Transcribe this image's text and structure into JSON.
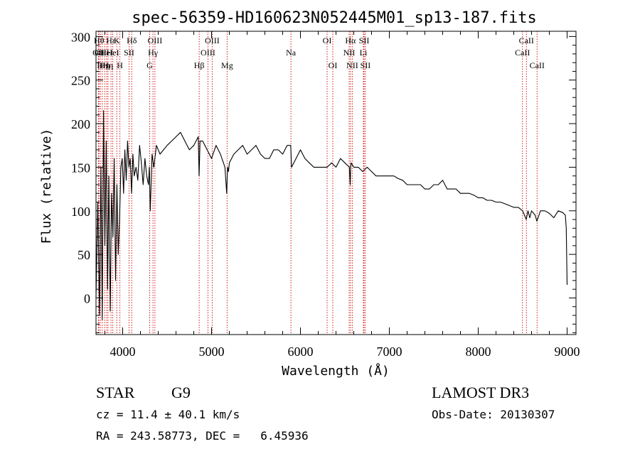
{
  "chart_data": {
    "type": "line",
    "title": "spec-56359-HD160623N052445M01_sp13-187.fits",
    "xlabel": "Wavelength (Å)",
    "ylabel": "Flux (relative)",
    "xlim": [
      3700,
      9100
    ],
    "ylim": [
      -42,
      306
    ],
    "x_ticks": [
      4000,
      5000,
      6000,
      7000,
      8000,
      9000
    ],
    "x_tick_labels": [
      "4000",
      "5000",
      "6000",
      "7000",
      "8000",
      "9000"
    ],
    "y_ticks": [
      0,
      50,
      100,
      150,
      200,
      250,
      300
    ],
    "y_tick_labels": [
      "0",
      "50",
      "100",
      "150",
      "200",
      "250",
      "300"
    ],
    "series": [
      {
        "name": "spectrum",
        "x": [
          3700,
          3720,
          3740,
          3755,
          3770,
          3785,
          3800,
          3815,
          3830,
          3845,
          3860,
          3875,
          3890,
          3905,
          3920,
          3935,
          3950,
          3965,
          3980,
          3995,
          4010,
          4025,
          4040,
          4055,
          4070,
          4085,
          4100,
          4115,
          4130,
          4150,
          4170,
          4190,
          4210,
          4230,
          4250,
          4270,
          4290,
          4300,
          4310,
          4330,
          4350,
          4380,
          4420,
          4460,
          4500,
          4550,
          4600,
          4650,
          4700,
          4750,
          4800,
          4850,
          4860,
          4870,
          4900,
          4950,
          5000,
          5050,
          5100,
          5150,
          5170,
          5180,
          5190,
          5200,
          5250,
          5300,
          5350,
          5400,
          5450,
          5500,
          5550,
          5600,
          5650,
          5700,
          5750,
          5800,
          5850,
          5890,
          5900,
          5950,
          6000,
          6050,
          6100,
          6150,
          6200,
          6250,
          6300,
          6350,
          6400,
          6450,
          6500,
          6550,
          6560,
          6565,
          6570,
          6600,
          6650,
          6700,
          6750,
          6800,
          6850,
          6900,
          6950,
          7000,
          7050,
          7100,
          7150,
          7200,
          7250,
          7300,
          7350,
          7400,
          7450,
          7500,
          7550,
          7600,
          7650,
          7700,
          7750,
          7800,
          7850,
          7900,
          7950,
          8000,
          8050,
          8100,
          8150,
          8200,
          8250,
          8300,
          8350,
          8400,
          8450,
          8500,
          8540,
          8560,
          8580,
          8600,
          8640,
          8660,
          8700,
          8750,
          8800,
          8850,
          8900,
          8950,
          8980,
          8990,
          9000
        ],
        "y": [
          0,
          110,
          -20,
          150,
          -25,
          215,
          60,
          180,
          10,
          140,
          -15,
          120,
          70,
          160,
          20,
          130,
          50,
          90,
          150,
          160,
          120,
          170,
          135,
          180,
          150,
          160,
          120,
          165,
          140,
          150,
          135,
          175,
          155,
          130,
          160,
          140,
          130,
          150,
          100,
          165,
          150,
          175,
          165,
          170,
          175,
          180,
          185,
          190,
          180,
          170,
          175,
          185,
          140,
          180,
          180,
          170,
          160,
          175,
          165,
          150,
          120,
          150,
          145,
          155,
          165,
          170,
          175,
          165,
          170,
          175,
          165,
          160,
          160,
          170,
          170,
          165,
          175,
          175,
          150,
          160,
          170,
          160,
          155,
          150,
          150,
          150,
          150,
          155,
          150,
          160,
          155,
          150,
          130,
          150,
          155,
          150,
          150,
          145,
          150,
          145,
          140,
          140,
          140,
          140,
          140,
          137,
          135,
          130,
          130,
          130,
          130,
          125,
          125,
          130,
          130,
          135,
          125,
          125,
          125,
          120,
          120,
          120,
          118,
          115,
          115,
          112,
          112,
          110,
          110,
          108,
          106,
          104,
          104,
          100,
          90,
          100,
          92,
          100,
          95,
          88,
          100,
          100,
          97,
          92,
          100,
          98,
          95,
          80,
          15
        ]
      }
    ],
    "line_markers": [
      {
        "x": 3728,
        "label": "OII",
        "row": 2
      },
      {
        "x": 3734,
        "label": "Hθ",
        "row": 1
      },
      {
        "x": 3750,
        "label": "OII",
        "row": 2
      },
      {
        "x": 3771,
        "label": "Hη",
        "row": 3
      },
      {
        "x": 3798,
        "label": "Hη",
        "row": 3
      },
      {
        "x": 3820,
        "label": "HeI",
        "row": 2
      },
      {
        "x": 3835,
        "label": "Hη",
        "row": 3
      },
      {
        "x": 3869,
        "label": "Hε",
        "row": 1
      },
      {
        "x": 3889,
        "label": "HeI",
        "row": 2
      },
      {
        "x": 3934,
        "label": "K",
        "row": 1
      },
      {
        "x": 3969,
        "label": "H",
        "row": 3
      },
      {
        "x": 4072,
        "label": "SII",
        "row": 2
      },
      {
        "x": 4102,
        "label": "Hδ",
        "row": 1
      },
      {
        "x": 4304,
        "label": "G",
        "row": 3
      },
      {
        "x": 4341,
        "label": "Hγ",
        "row": 2
      },
      {
        "x": 4363,
        "label": "OIII",
        "row": 1
      },
      {
        "x": 4861,
        "label": "Hβ",
        "row": 3
      },
      {
        "x": 4959,
        "label": "OIII",
        "row": 2
      },
      {
        "x": 5007,
        "label": "OIII",
        "row": 1
      },
      {
        "x": 5175,
        "label": "Mg",
        "row": 3
      },
      {
        "x": 5893,
        "label": "Na",
        "row": 2
      },
      {
        "x": 6300,
        "label": "OI",
        "row": 1
      },
      {
        "x": 6364,
        "label": "OI",
        "row": 3
      },
      {
        "x": 6548,
        "label": "NII",
        "row": 2
      },
      {
        "x": 6563,
        "label": "Hα",
        "row": 1
      },
      {
        "x": 6583,
        "label": "NII",
        "row": 3
      },
      {
        "x": 6708,
        "label": "Li",
        "row": 2
      },
      {
        "x": 6716,
        "label": "SII",
        "row": 1
      },
      {
        "x": 6731,
        "label": "SII",
        "row": 3
      },
      {
        "x": 8498,
        "label": "CaII",
        "row": 2
      },
      {
        "x": 8542,
        "label": "CaII",
        "row": 1
      },
      {
        "x": 8662,
        "label": "CaII",
        "row": 3
      }
    ],
    "marker_color": "#cc0000",
    "line_color": "#000000"
  },
  "info": {
    "object_class": "STAR",
    "subclass": "G9",
    "survey": "LAMOST DR3",
    "cz": "cz = 11.4 ± 40.1 km/s",
    "obs_date": "Obs-Date: 20130307",
    "coords": "RA = 243.58773, DEC =   6.45936"
  }
}
